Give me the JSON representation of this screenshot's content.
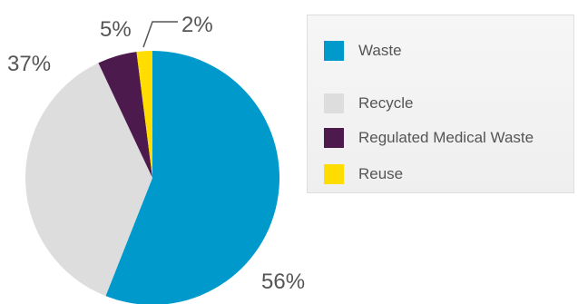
{
  "chart_data": {
    "type": "pie",
    "categories": [
      "Waste",
      "Recycle",
      "Regulated Medical Waste",
      "Reuse"
    ],
    "values": [
      56,
      37,
      5,
      2
    ],
    "value_labels": [
      "56%",
      "37%",
      "5%",
      "2%"
    ],
    "colors": [
      "#0099cc",
      "#dddddd",
      "#4d1a4d",
      "#ffdd00"
    ],
    "title": "",
    "legend_position": "right",
    "start_angle_deg": 0,
    "direction": "clockwise"
  }
}
